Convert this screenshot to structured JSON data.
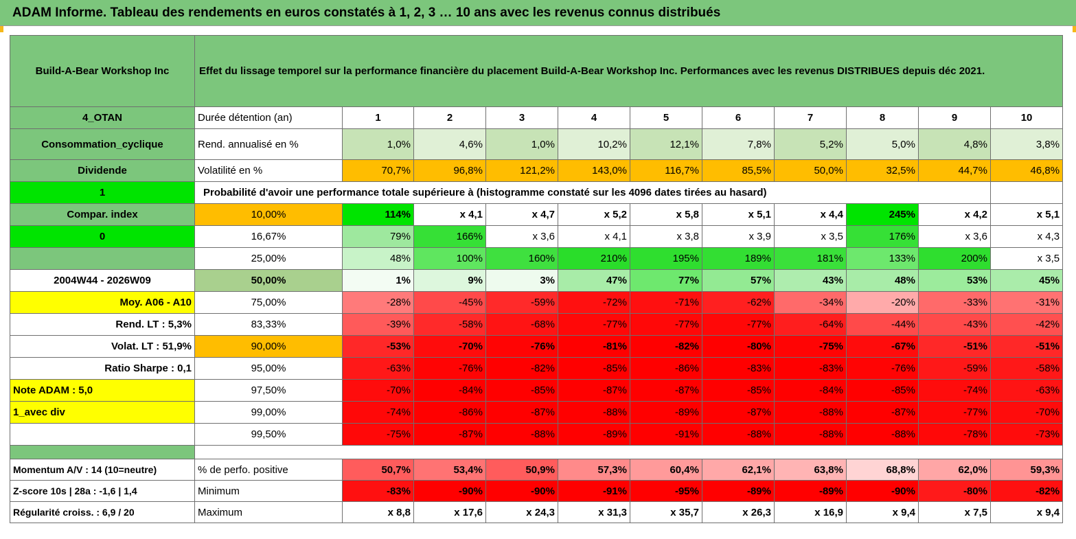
{
  "title": "ADAM Informe. Tableau des rendements en euros constatés à 1, 2, 3 … 10 ans avec les revenus connus distribués",
  "header": {
    "company": "Build-A-Bear Workshop Inc",
    "description": "Effet du lissage temporel sur la performance financière du placement Build-A-Bear Workshop Inc. Performances avec les revenus DISTRIBUES depuis déc 2021."
  },
  "side": {
    "category": "4_OTAN",
    "sector": "Consommation_cyclique",
    "type": "Dividende",
    "flag1": "1",
    "compar": "Compar. index",
    "flag0": "0",
    "period": "2004W44 - 2026W09",
    "moy": "Moy. A06 - A10",
    "rend_lt": "Rend. LT :   5,3%",
    "volat_lt": "Volat. LT :   51,9%",
    "sharpe": "Ratio Sharpe :    0,1",
    "note": "Note ADAM : 5,0",
    "avec_div": "1_avec div",
    "momentum": "Momentum A/V : 14 (10=neutre)",
    "zscore": "Z-score 10s | 28a : -1,6 | 1,4",
    "regularite": "Régularité croiss. : 6,9 / 20"
  },
  "rows": {
    "duree_label": "Durée détention (an)",
    "years": [
      "1",
      "2",
      "3",
      "4",
      "5",
      "6",
      "7",
      "8",
      "9",
      "10"
    ],
    "rend_label": "Rend. annualisé en %",
    "rend": [
      "1,0%",
      "4,6%",
      "1,0%",
      "10,2%",
      "12,1%",
      "7,8%",
      "5,2%",
      "5,0%",
      "4,8%",
      "3,8%"
    ],
    "vol_label": "Volatilité en %",
    "vol": [
      "70,7%",
      "96,8%",
      "121,2%",
      "143,0%",
      "116,7%",
      "85,5%",
      "50,0%",
      "32,5%",
      "44,7%",
      "46,8%"
    ],
    "prob_label": "Probabilité d'avoir une performance totale supérieure à (histogramme constaté sur les 4096 dates tirées au hasard)"
  },
  "quantiles": [
    {
      "pct": "10,00%",
      "vals": [
        "114%",
        "x 4,1",
        "x 4,7",
        "x 5,2",
        "x 5,8",
        "x 5,1",
        "x 4,4",
        "245%",
        "x 4,2",
        "x 5,1"
      ]
    },
    {
      "pct": "16,67%",
      "vals": [
        "79%",
        "166%",
        "x 3,6",
        "x 4,1",
        "x 3,8",
        "x 3,9",
        "x 3,5",
        "176%",
        "x 3,6",
        "x 4,3"
      ]
    },
    {
      "pct": "25,00%",
      "vals": [
        "48%",
        "100%",
        "160%",
        "210%",
        "195%",
        "189%",
        "181%",
        "133%",
        "200%",
        "x 3,5"
      ]
    },
    {
      "pct": "50,00%",
      "vals": [
        "1%",
        "9%",
        "3%",
        "47%",
        "77%",
        "57%",
        "43%",
        "48%",
        "53%",
        "45%"
      ]
    },
    {
      "pct": "75,00%",
      "vals": [
        "-28%",
        "-45%",
        "-59%",
        "-72%",
        "-71%",
        "-62%",
        "-34%",
        "-20%",
        "-33%",
        "-31%"
      ]
    },
    {
      "pct": "83,33%",
      "vals": [
        "-39%",
        "-58%",
        "-68%",
        "-77%",
        "-77%",
        "-77%",
        "-64%",
        "-44%",
        "-43%",
        "-42%"
      ]
    },
    {
      "pct": "90,00%",
      "vals": [
        "-53%",
        "-70%",
        "-76%",
        "-81%",
        "-82%",
        "-80%",
        "-75%",
        "-67%",
        "-51%",
        "-51%"
      ]
    },
    {
      "pct": "95,00%",
      "vals": [
        "-63%",
        "-76%",
        "-82%",
        "-85%",
        "-86%",
        "-83%",
        "-83%",
        "-76%",
        "-59%",
        "-58%"
      ]
    },
    {
      "pct": "97,50%",
      "vals": [
        "-70%",
        "-84%",
        "-85%",
        "-87%",
        "-87%",
        "-85%",
        "-84%",
        "-85%",
        "-74%",
        "-63%"
      ]
    },
    {
      "pct": "99,00%",
      "vals": [
        "-74%",
        "-86%",
        "-87%",
        "-88%",
        "-89%",
        "-87%",
        "-88%",
        "-87%",
        "-77%",
        "-70%"
      ]
    },
    {
      "pct": "99,50%",
      "vals": [
        "-75%",
        "-87%",
        "-88%",
        "-89%",
        "-91%",
        "-88%",
        "-88%",
        "-88%",
        "-78%",
        "-73%"
      ]
    }
  ],
  "stats": {
    "pos_label": "% de perfo. positive",
    "pos": [
      "50,7%",
      "53,4%",
      "50,9%",
      "57,3%",
      "60,4%",
      "62,1%",
      "63,8%",
      "68,8%",
      "62,0%",
      "59,3%"
    ],
    "min_label": "Minimum",
    "min": [
      "-83%",
      "-90%",
      "-90%",
      "-91%",
      "-95%",
      "-89%",
      "-89%",
      "-90%",
      "-80%",
      "-82%"
    ],
    "max_label": "Maximum",
    "max": [
      "x 8,8",
      "x 17,6",
      "x 24,3",
      "x 31,3",
      "x 35,7",
      "x 26,3",
      "x 16,9",
      "x 9,4",
      "x 7,5",
      "x 9,4"
    ]
  },
  "colors": {
    "header_green": "#7cc67c",
    "light_green": "#c7e3b6",
    "lime": "#00e400",
    "orange": "#ffbd00",
    "yellow": "#ffff00",
    "red": "#ff0000"
  },
  "cell_colors": {
    "q": [
      [
        "#00e400",
        "#ffffff",
        "#ffffff",
        "#ffffff",
        "#ffffff",
        "#ffffff",
        "#ffffff",
        "#00e400",
        "#ffffff",
        "#ffffff"
      ],
      [
        "#9ee89e",
        "#36e036",
        "#ffffff",
        "#ffffff",
        "#ffffff",
        "#ffffff",
        "#ffffff",
        "#36e036",
        "#ffffff",
        "#ffffff"
      ],
      [
        "#c8f3c8",
        "#5fe65f",
        "#3fe03f",
        "#2add2a",
        "#2fde2f",
        "#33de33",
        "#3ae03a",
        "#6de86d",
        "#2fde2f",
        "#ffffff"
      ],
      [
        "#f3fcf3",
        "#ddf7dd",
        "#eefbee",
        "#a8eca8",
        "#6ee86e",
        "#93ea93",
        "#aeedae",
        "#a8eca8",
        "#9ceb9c",
        "#aaecaa"
      ],
      [
        "#ff7a7a",
        "#ff4a4a",
        "#ff2a2a",
        "#ff1010",
        "#ff1010",
        "#ff2020",
        "#ff6a6a",
        "#ffaaaa",
        "#ff6a6a",
        "#ff7272"
      ],
      [
        "#ff5a5a",
        "#ff2a2a",
        "#ff1414",
        "#ff0808",
        "#ff0808",
        "#ff0808",
        "#ff1e1e",
        "#ff4a4a",
        "#ff4a4a",
        "#ff5050"
      ],
      [
        "#ff2828",
        "#ff0c0c",
        "#ff0404",
        "#ff0000",
        "#ff0000",
        "#ff0000",
        "#ff0404",
        "#ff0c0c",
        "#ff2828",
        "#ff2828"
      ],
      [
        "#ff1818",
        "#ff0404",
        "#ff0000",
        "#ff0000",
        "#ff0000",
        "#ff0000",
        "#ff0000",
        "#ff0404",
        "#ff1818",
        "#ff1818"
      ],
      [
        "#ff0c0c",
        "#ff0000",
        "#ff0000",
        "#ff0000",
        "#ff0000",
        "#ff0000",
        "#ff0000",
        "#ff0000",
        "#ff0c0c",
        "#ff1414"
      ],
      [
        "#ff0808",
        "#ff0000",
        "#ff0000",
        "#ff0000",
        "#ff0000",
        "#ff0000",
        "#ff0000",
        "#ff0000",
        "#ff0808",
        "#ff0c0c"
      ],
      [
        "#ff0808",
        "#ff0000",
        "#ff0000",
        "#ff0000",
        "#ff0000",
        "#ff0000",
        "#ff0000",
        "#ff0000",
        "#ff0808",
        "#ff0c0c"
      ]
    ],
    "pos": [
      "#ff5c5c",
      "#ff7373",
      "#ff5c5c",
      "#ff8a8a",
      "#ff9a9a",
      "#ffa8a8",
      "#ffb4b4",
      "#ffd4d4",
      "#ffa6a6",
      "#ff9494"
    ],
    "min": [
      "#ff1010",
      "#ff0000",
      "#ff0000",
      "#ff0000",
      "#ff0000",
      "#ff0000",
      "#ff0000",
      "#ff0000",
      "#ff1a1a",
      "#ff1010"
    ]
  }
}
